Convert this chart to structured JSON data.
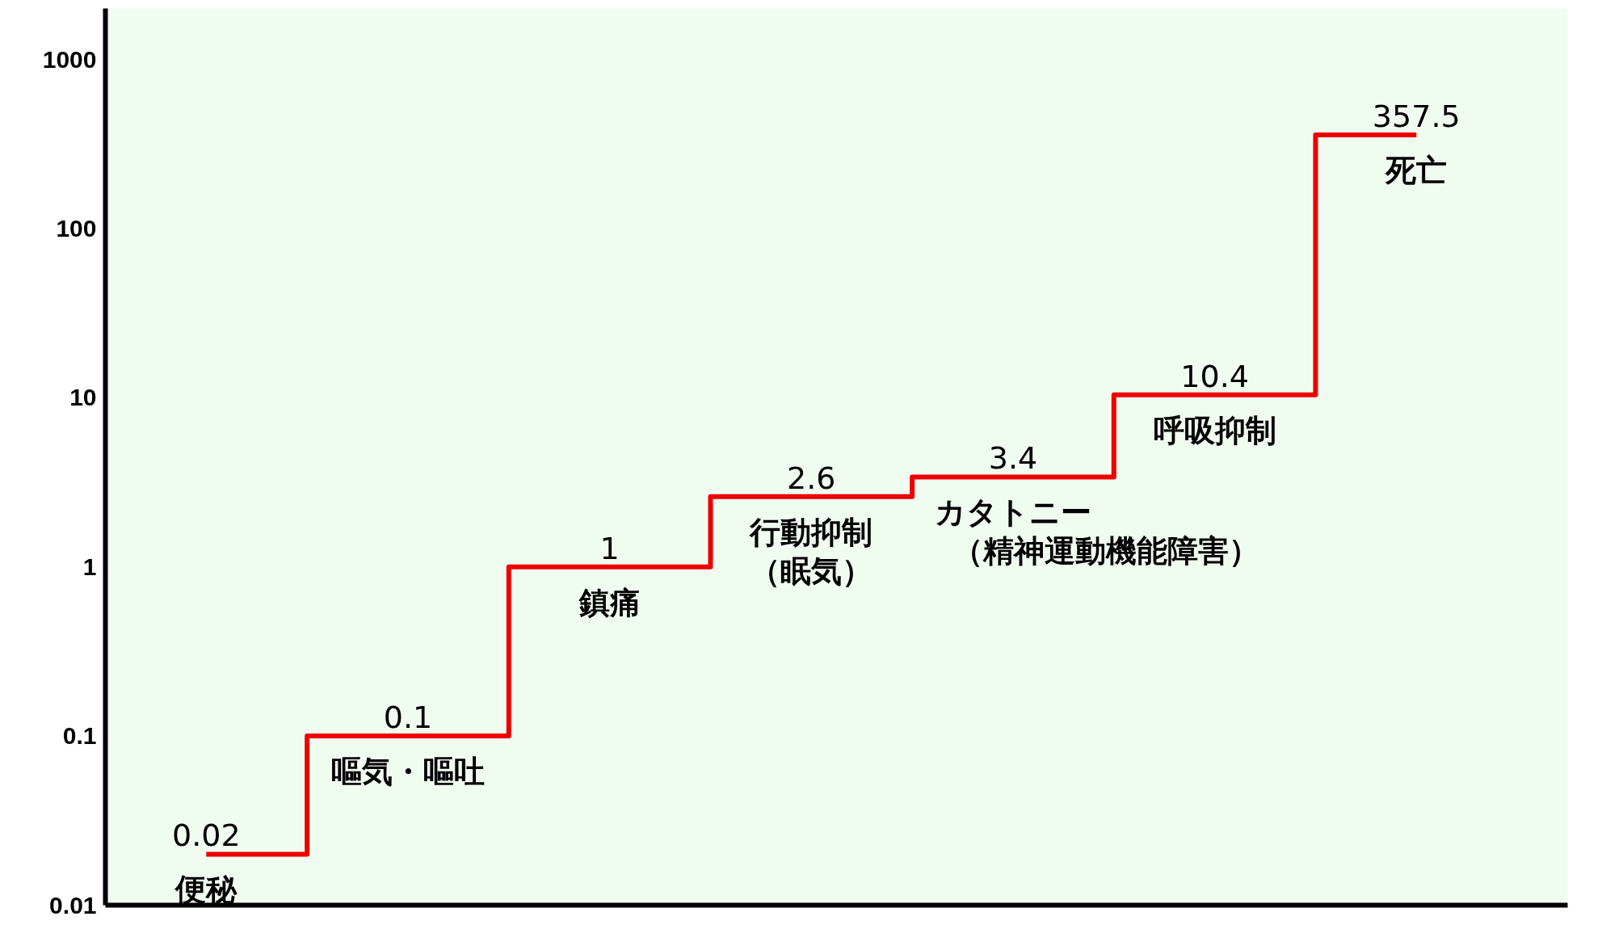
{
  "chart_data": {
    "type": "step",
    "categories": [
      "便秘",
      "嘔気・嘔吐",
      "鎮痛",
      "行動抑制（眠気）",
      "カタトニー（精神運動機能障害）",
      "呼吸抑制",
      "死亡"
    ],
    "values": [
      0.02,
      0.1,
      1,
      2.6,
      3.4,
      10.4,
      357.5
    ],
    "color": "#ee0000",
    "log": true,
    "ylim": [
      0.01,
      2000
    ],
    "yticks": [
      0.01,
      0.1,
      1,
      10,
      100,
      1000
    ],
    "grid": false,
    "data_labels": true,
    "tick_labels": "y"
  }
}
